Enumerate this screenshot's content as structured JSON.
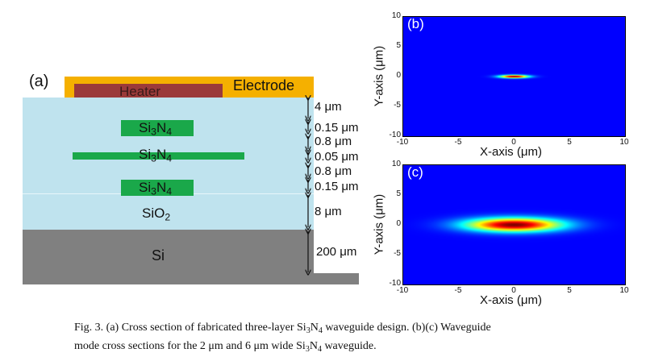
{
  "panel_a": {
    "label": "(a)",
    "heater_label": "Heater",
    "electrode_label": "Electrode",
    "layers": [
      {
        "pre": "Si",
        "sub1": "3",
        "mid": "N",
        "sub2": "4"
      },
      {
        "pre": "Si",
        "sub1": "3",
        "mid": "N",
        "sub2": "4"
      },
      {
        "pre": "Si",
        "sub1": "3",
        "mid": "N",
        "sub2": "4"
      }
    ],
    "sio2": {
      "pre": "SiO",
      "sub": "2"
    },
    "si_label": "Si",
    "dims": [
      "4 μm",
      "0.15 μm",
      "0.8 μm",
      "0.05 μm",
      "0.8 μm",
      "0.15 μm",
      "8 μm",
      "200 μm"
    ],
    "colors": {
      "electrode": "#f5b000",
      "heater": "#9b3a3a",
      "cladding": "#bfe3ee",
      "core": "#1aa84a",
      "substrate": "#808080"
    }
  },
  "plots": [
    {
      "label": "(b)",
      "xlabel": "X-axis (μm)",
      "ylabel": "Y-axis (μm)",
      "xticks": [
        "-10",
        "-5",
        "0",
        "5",
        "10"
      ],
      "yticks": [
        "10",
        "5",
        "0",
        "-5",
        "-10"
      ],
      "xlim": [
        -10,
        10
      ],
      "ylim": [
        -10,
        10
      ],
      "mode_center": [
        0,
        0
      ],
      "mode_sigma": [
        0.9,
        0.18
      ]
    },
    {
      "label": "(c)",
      "xlabel": "X-axis (μm)",
      "ylabel": "Y-axis (μm)",
      "xticks": [
        "-10",
        "-5",
        "0",
        "5",
        "10"
      ],
      "yticks": [
        "10",
        "5",
        "0",
        "-5",
        "-10"
      ],
      "xlim": [
        -10,
        10
      ],
      "ylim": [
        -10,
        10
      ],
      "mode_center": [
        0,
        0
      ],
      "mode_sigma": [
        3.0,
        0.8
      ]
    }
  ],
  "caption": {
    "line1_a": "Fig. 3. (a) Cross section of fabricated three-layer Si",
    "sub_a1": "3",
    "line1_b": "N",
    "sub_a2": "4",
    "line1_c": " waveguide design. (b)(c) Waveguide",
    "line2_a": "mode cross sections for the 2 μm and 6 μm wide Si",
    "sub_b1": "3",
    "line2_b": "N",
    "sub_b2": "4",
    "line2_c": " waveguide."
  }
}
